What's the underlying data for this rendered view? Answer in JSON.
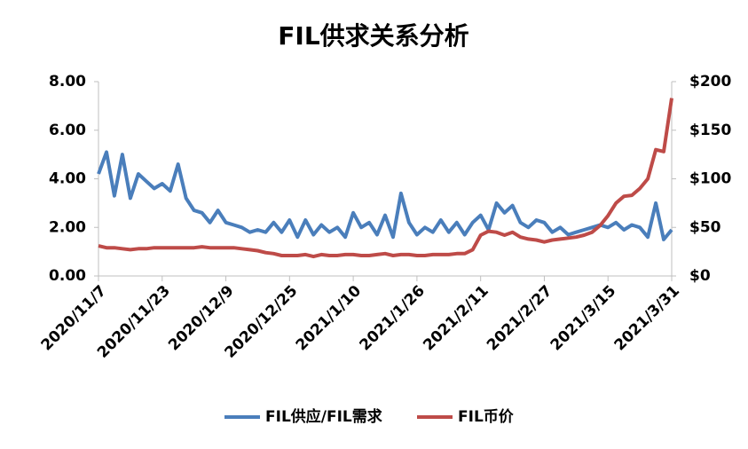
{
  "chart_data": {
    "type": "line",
    "title": "FIL供求关系分析",
    "x": [
      "2020/11/7",
      "2020/11/9",
      "2020/11/11",
      "2020/11/13",
      "2020/11/15",
      "2020/11/17",
      "2020/11/19",
      "2020/11/21",
      "2020/11/23",
      "2020/11/25",
      "2020/11/27",
      "2020/11/29",
      "2020/12/1",
      "2020/12/3",
      "2020/12/5",
      "2020/12/7",
      "2020/12/9",
      "2020/12/11",
      "2020/12/13",
      "2020/12/15",
      "2020/12/17",
      "2020/12/19",
      "2020/12/21",
      "2020/12/23",
      "2020/12/25",
      "2020/12/27",
      "2020/12/29",
      "2020/12/31",
      "2021/1/2",
      "2021/1/4",
      "2021/1/6",
      "2021/1/8",
      "2021/1/10",
      "2021/1/12",
      "2021/1/14",
      "2021/1/16",
      "2021/1/18",
      "2021/1/20",
      "2021/1/22",
      "2021/1/24",
      "2021/1/26",
      "2021/1/28",
      "2021/1/30",
      "2021/2/1",
      "2021/2/3",
      "2021/2/5",
      "2021/2/7",
      "2021/2/9",
      "2021/2/11",
      "2021/2/13",
      "2021/2/15",
      "2021/2/17",
      "2021/2/19",
      "2021/2/21",
      "2021/2/23",
      "2021/2/25",
      "2021/2/27",
      "2021/3/1",
      "2021/3/3",
      "2021/3/5",
      "2021/3/7",
      "2021/3/9",
      "2021/3/11",
      "2021/3/13",
      "2021/3/15",
      "2021/3/17",
      "2021/3/19",
      "2021/3/21",
      "2021/3/23",
      "2021/3/25",
      "2021/3/27",
      "2021/3/29",
      "2021/3/31"
    ],
    "xticks": [
      "2020/11/7",
      "2020/11/23",
      "2020/12/9",
      "2020/12/25",
      "2021/1/10",
      "2021/1/26",
      "2021/2/11",
      "2021/2/27",
      "2021/3/15",
      "2021/3/31"
    ],
    "series": [
      {
        "name": "FIL供应/FIL需求",
        "color": "#4a7ebb",
        "values": [
          4.2,
          5.1,
          3.3,
          5.0,
          3.2,
          4.2,
          3.9,
          3.6,
          3.8,
          3.5,
          4.6,
          3.2,
          2.7,
          2.6,
          2.2,
          2.7,
          2.2,
          2.1,
          2.0,
          1.8,
          1.9,
          1.8,
          2.2,
          1.8,
          2.3,
          1.6,
          2.3,
          1.7,
          2.1,
          1.8,
          2.0,
          1.6,
          2.6,
          2.0,
          2.2,
          1.7,
          2.5,
          1.6,
          3.4,
          2.2,
          1.7,
          2.0,
          1.8,
          2.3,
          1.8,
          2.2,
          1.7,
          2.2,
          2.5,
          1.9,
          3.0,
          2.6,
          2.9,
          2.2,
          2.0,
          2.3,
          2.2,
          1.8,
          2.0,
          1.7,
          1.8,
          1.9,
          2.0,
          2.1,
          2.0,
          2.2,
          1.9,
          2.1,
          2.0,
          1.6,
          3.0,
          1.5,
          1.9
        ]
      },
      {
        "name": "FIL币价",
        "color": "#be4b48",
        "axis": "y2",
        "values": [
          31,
          29,
          29,
          28,
          27,
          28,
          28,
          29,
          29,
          29,
          29,
          29,
          29,
          30,
          29,
          29,
          29,
          29,
          28,
          27,
          26,
          24,
          23,
          21,
          21,
          21,
          22,
          20,
          22,
          21,
          21,
          22,
          22,
          21,
          21,
          22,
          23,
          21,
          22,
          22,
          21,
          21,
          22,
          22,
          22,
          23,
          23,
          27,
          42,
          46,
          45,
          42,
          45,
          40,
          38,
          37,
          35,
          37,
          38,
          39,
          40,
          42,
          45,
          52,
          62,
          75,
          82,
          83,
          90,
          100,
          130,
          128,
          183
        ]
      }
    ],
    "ylim": [
      0,
      8
    ],
    "yticks": [
      {
        "value": 0,
        "label": "0.00"
      },
      {
        "value": 2,
        "label": "2.00"
      },
      {
        "value": 4,
        "label": "4.00"
      },
      {
        "value": 6,
        "label": "6.00"
      },
      {
        "value": 8,
        "label": "8.00"
      }
    ],
    "y2lim": [
      0,
      200
    ],
    "y2ticks": [
      {
        "value": 0,
        "label": "$0"
      },
      {
        "value": 50,
        "label": "$50"
      },
      {
        "value": 100,
        "label": "$100"
      },
      {
        "value": 150,
        "label": "$150"
      },
      {
        "value": 200,
        "label": "$200"
      }
    ],
    "grid": false,
    "legend": "bottom"
  }
}
